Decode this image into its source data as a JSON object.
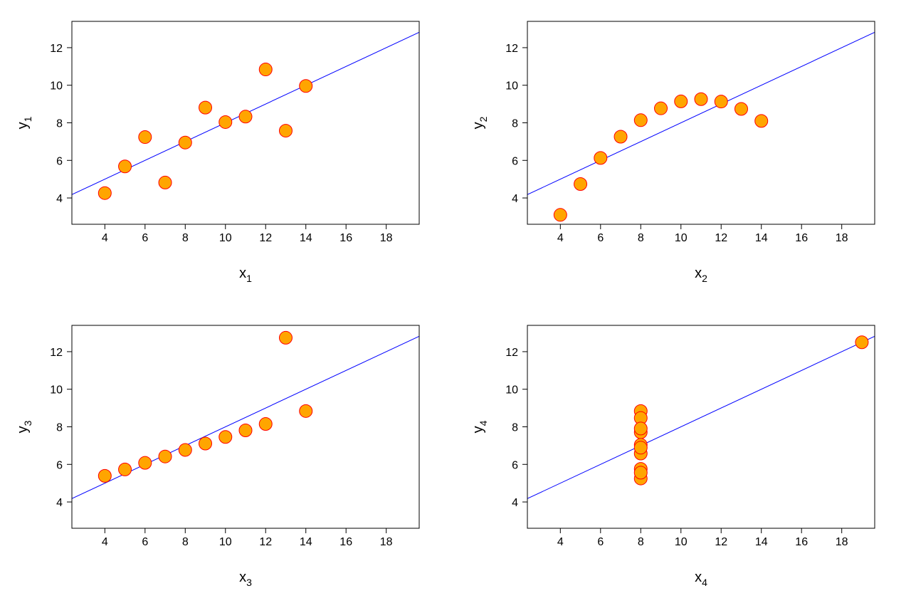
{
  "chart_data": [
    {
      "type": "scatter",
      "xlabel": "x",
      "xsub": "1",
      "ylabel": "y",
      "ysub": "1",
      "x": [
        10,
        8,
        13,
        9,
        11,
        14,
        6,
        4,
        12,
        7,
        5
      ],
      "y": [
        8.04,
        6.95,
        7.58,
        8.81,
        8.33,
        9.96,
        7.24,
        4.26,
        10.84,
        4.82,
        5.68
      ],
      "fit": {
        "intercept": 3,
        "slope": 0.5
      }
    },
    {
      "type": "scatter",
      "xlabel": "x",
      "xsub": "2",
      "ylabel": "y",
      "ysub": "2",
      "x": [
        10,
        8,
        13,
        9,
        11,
        14,
        6,
        4,
        12,
        7,
        5
      ],
      "y": [
        9.14,
        8.14,
        8.74,
        8.77,
        9.26,
        8.1,
        6.13,
        3.1,
        9.13,
        7.26,
        4.74
      ],
      "fit": {
        "intercept": 3,
        "slope": 0.5
      }
    },
    {
      "type": "scatter",
      "xlabel": "x",
      "xsub": "3",
      "ylabel": "y",
      "ysub": "3",
      "x": [
        10,
        8,
        13,
        9,
        11,
        14,
        6,
        4,
        12,
        7,
        5
      ],
      "y": [
        7.46,
        6.77,
        12.74,
        7.11,
        7.81,
        8.84,
        6.08,
        5.39,
        8.15,
        6.42,
        5.73
      ],
      "fit": {
        "intercept": 3,
        "slope": 0.5
      }
    },
    {
      "type": "scatter",
      "xlabel": "x",
      "xsub": "4",
      "ylabel": "y",
      "ysub": "4",
      "x": [
        8,
        8,
        8,
        8,
        8,
        8,
        8,
        19,
        8,
        8,
        8
      ],
      "y": [
        6.58,
        5.76,
        7.71,
        8.84,
        8.47,
        7.04,
        5.25,
        12.5,
        5.56,
        7.91,
        6.89
      ],
      "fit": {
        "intercept": 3,
        "slope": 0.5
      }
    }
  ],
  "axes": {
    "xlim": [
      3,
      19
    ],
    "ylim": [
      3,
      13
    ],
    "xticks": [
      4,
      6,
      8,
      10,
      12,
      14,
      16,
      18
    ],
    "yticks": [
      4,
      6,
      8,
      10,
      12
    ],
    "grid": false
  },
  "colors": {
    "point_fill": "#FFA500",
    "point_stroke": "#FF0000",
    "fit_line": "#0000FF"
  }
}
